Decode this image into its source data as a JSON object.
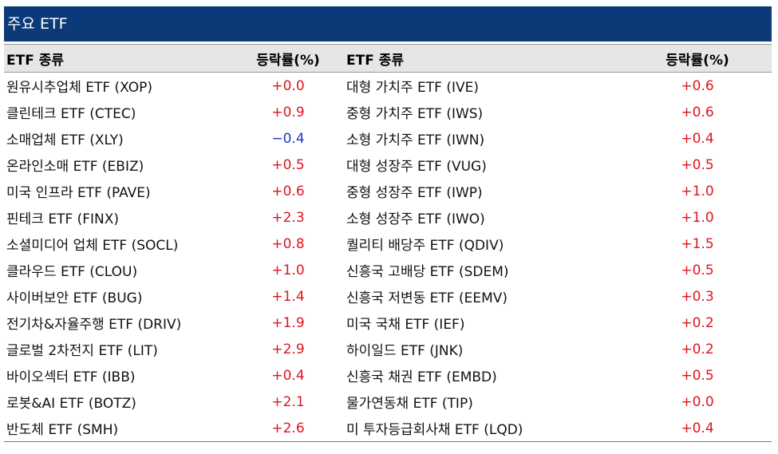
{
  "title": "주요 ETF",
  "table": {
    "header": [
      "ETF 종류",
      "등락률(%)",
      "ETF 종류",
      "등락률(%)"
    ],
    "rows": [
      [
        "원유시추업체 ETF (XOP)",
        "+0.0",
        "대형 가치주 ETF (IVE)",
        "+0.6"
      ],
      [
        "클린테크 ETF (CTEC)",
        "+0.9",
        "중형 가치주 ETF (IWS)",
        "+0.6"
      ],
      [
        "소매업체 ETF (XLY)",
        "−0.4",
        "소형 가치주 ETF (IWN)",
        "+0.4"
      ],
      [
        "온라인소매 ETF (EBIZ)",
        "+0.5",
        "대형 성장주 ETF (VUG)",
        "+0.5"
      ],
      [
        "미국 인프라 ETF (PAVE)",
        "+0.6",
        "중형 성장주 ETF (IWP)",
        "+1.0"
      ],
      [
        "핀테크 ETF (FINX)",
        "+2.3",
        "소형 성장주 ETF (IWO)",
        "+1.0"
      ],
      [
        "소셜미디어 업체 ETF (SOCL)",
        "+0.8",
        "퀄리티 배당주 ETF (QDIV)",
        "+1.5"
      ],
      [
        "클라우드 ETF (CLOU)",
        "+1.0",
        "신흥국 고배당 ETF (SDEM)",
        "+0.5"
      ],
      [
        "사이버보안 ETF (BUG)",
        "+1.4",
        "신흥국 저변동 ETF (EEMV)",
        "+0.3"
      ],
      [
        "전기차&자율주행 ETF (DRIV)",
        "+1.9",
        "미국 국채 ETF (IEF)",
        "+0.2"
      ],
      [
        "글로벌 2차전지 ETF (LIT)",
        "+2.9",
        "하이일드 ETF (JNK)",
        "+0.2"
      ],
      [
        "바이오섹터 ETF (IBB)",
        "+0.4",
        "신흥국 채권 ETF (EMBD)",
        "+0.5"
      ],
      [
        "로봇&AI ETF (BOTZ)",
        "+2.1",
        "물가연동채 ETF (TIP)",
        "+0.0"
      ],
      [
        "반도체 ETF (SMH)",
        "+2.6",
        "미 투자등급회사채 ETF (LQD)",
        "+0.4"
      ]
    ]
  }
}
